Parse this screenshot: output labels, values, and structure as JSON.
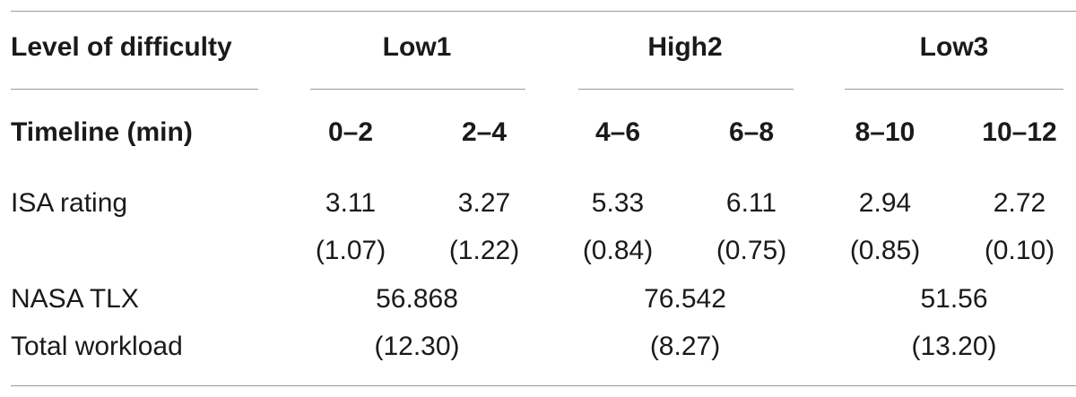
{
  "table": {
    "header": {
      "level_label": "Level of difficulty",
      "groups": [
        "Low1",
        "High2",
        "Low3"
      ],
      "timeline_label": "Timeline (min)",
      "timeline": [
        "0–2",
        "2–4",
        "4–6",
        "6–8",
        "8–10",
        "10–12"
      ]
    },
    "isa": {
      "label": "ISA rating",
      "means": [
        "3.11",
        "3.27",
        "5.33",
        "6.11",
        "2.94",
        "2.72"
      ],
      "sds": [
        "(1.07)",
        "(1.22)",
        "(0.84)",
        "(0.75)",
        "(0.85)",
        "(0.10)"
      ]
    },
    "nasa": {
      "label_line1": "NASA TLX",
      "label_line2": "Total workload",
      "means": [
        "56.868",
        "76.542",
        "51.56"
      ],
      "sds": [
        "(12.30)",
        "(8.27)",
        "(13.20)"
      ]
    }
  }
}
